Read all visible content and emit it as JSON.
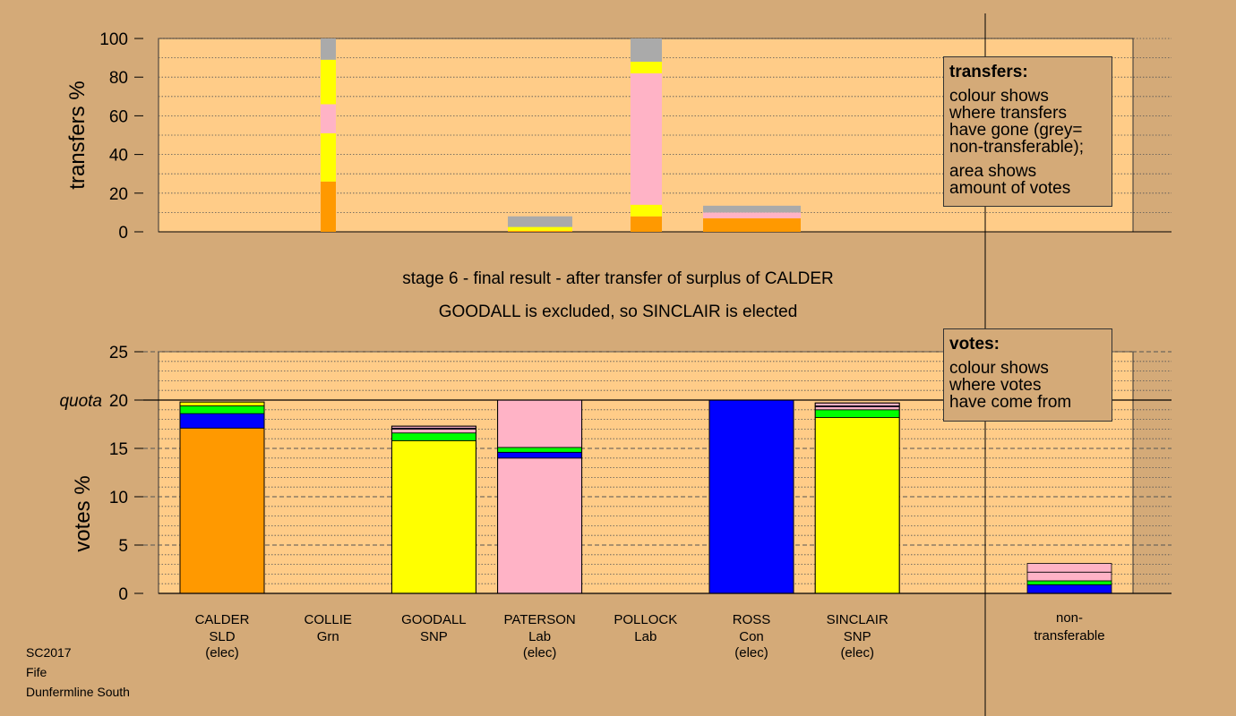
{
  "colors": {
    "background": "#d4aa78",
    "plot_background": "#ffcc88",
    "SLD": "#ff9900",
    "SNP": "#ffff00",
    "Lab": "#ffb3c6",
    "Con": "#0000ff",
    "Grn": "#00ff00",
    "non_transferable": "#aaaaaa"
  },
  "stage": {
    "line1": "stage 6 - final result - after transfer of surplus of CALDER",
    "line2": "GOODALL is excluded, so SINCLAIR is elected"
  },
  "legend_transfers": {
    "title": "transfers:",
    "lines": [
      "colour shows",
      "where transfers",
      "have gone (grey=",
      "non-transferable);"
    ],
    "lines2": [
      "area shows",
      "amount of votes"
    ]
  },
  "legend_votes": {
    "title": "votes:",
    "lines": [
      "colour shows",
      "where votes",
      "have come from"
    ]
  },
  "footer": [
    "SC2017",
    "Fife",
    "Dunfermline South"
  ],
  "chart_data": [
    {
      "type": "bar",
      "stacked": true,
      "ylabel": "transfers %",
      "ylim": [
        0,
        100
      ],
      "yticks": [
        0,
        20,
        40,
        60,
        80,
        100
      ],
      "grid": "dotted every 10",
      "bars": [
        {
          "candidate": "COLLIE",
          "segments": [
            {
              "party": "SLD",
              "value": 26
            },
            {
              "party": "SNP",
              "value": 25
            },
            {
              "party": "Lab",
              "value": 15
            },
            {
              "party": "SNP",
              "value": 23
            },
            {
              "party": "non_transferable",
              "value": 11
            }
          ]
        },
        {
          "candidate": "PATERSON",
          "segments": [
            {
              "party": "SLD",
              "value": 0.5
            },
            {
              "party": "SNP",
              "value": 2
            },
            {
              "party": "non_transferable",
              "value": 5.5
            }
          ]
        },
        {
          "candidate": "POLLOCK",
          "segments": [
            {
              "party": "SLD",
              "value": 8
            },
            {
              "party": "SNP",
              "value": 6
            },
            {
              "party": "Lab",
              "value": 68
            },
            {
              "party": "SNP",
              "value": 6
            },
            {
              "party": "non_transferable",
              "value": 12
            }
          ]
        },
        {
          "candidate": "CALDER-surplus",
          "segments": [
            {
              "party": "SLD",
              "value": 7
            },
            {
              "party": "Lab",
              "value": 3
            },
            {
              "party": "non_transferable",
              "value": 3.5
            }
          ]
        }
      ]
    },
    {
      "type": "bar",
      "stacked": true,
      "ylabel": "votes %",
      "ylim": [
        0,
        25
      ],
      "yticks": [
        0,
        5,
        10,
        15,
        20,
        25
      ],
      "quota": 20,
      "quota_label": "quota",
      "grid": "dotted every 1, dashed every 5",
      "candidates": [
        {
          "name": "CALDER",
          "party": "SLD",
          "status": "(elec)",
          "segments": [
            {
              "party": "SLD",
              "value": 17.1
            },
            {
              "party": "Con",
              "value": 1.5
            },
            {
              "party": "Grn",
              "value": 0.8
            },
            {
              "party": "SNP",
              "value": 0.4
            }
          ]
        },
        {
          "name": "COLLIE",
          "party": "Grn",
          "status": "",
          "segments": []
        },
        {
          "name": "GOODALL",
          "party": "SNP",
          "status": "",
          "segments": [
            {
              "party": "SNP",
              "value": 15.8
            },
            {
              "party": "Grn",
              "value": 0.8
            },
            {
              "party": "Lab",
              "value": 0.4
            },
            {
              "party": "Con",
              "value": 0.1
            },
            {
              "party": "Lab",
              "value": 0.2
            }
          ]
        },
        {
          "name": "PATERSON",
          "party": "Lab",
          "status": "(elec)",
          "segments": [
            {
              "party": "Lab",
              "value": 14.0
            },
            {
              "party": "Con",
              "value": 0.6
            },
            {
              "party": "Grn",
              "value": 0.5
            },
            {
              "party": "Lab",
              "value": 4.9
            }
          ]
        },
        {
          "name": "POLLOCK",
          "party": "Lab",
          "status": "",
          "segments": []
        },
        {
          "name": "ROSS",
          "party": "Con",
          "status": "(elec)",
          "segments": [
            {
              "party": "Con",
              "value": 20.0
            }
          ]
        },
        {
          "name": "SINCLAIR",
          "party": "SNP",
          "status": "(elec)",
          "segments": [
            {
              "party": "SNP",
              "value": 18.2
            },
            {
              "party": "Grn",
              "value": 0.8
            },
            {
              "party": "Lab",
              "value": 0.3
            },
            {
              "party": "Con",
              "value": 0.1
            },
            {
              "party": "Lab",
              "value": 0.3
            }
          ]
        }
      ],
      "non_transferable": {
        "label_line1": "non-",
        "label_line2": "transferable",
        "segments": [
          {
            "party": "Con",
            "value": 0.9
          },
          {
            "party": "Grn",
            "value": 0.4
          },
          {
            "party": "Lab",
            "value": 0.9
          },
          {
            "party": "Lab",
            "value": 0.9
          }
        ]
      }
    }
  ]
}
